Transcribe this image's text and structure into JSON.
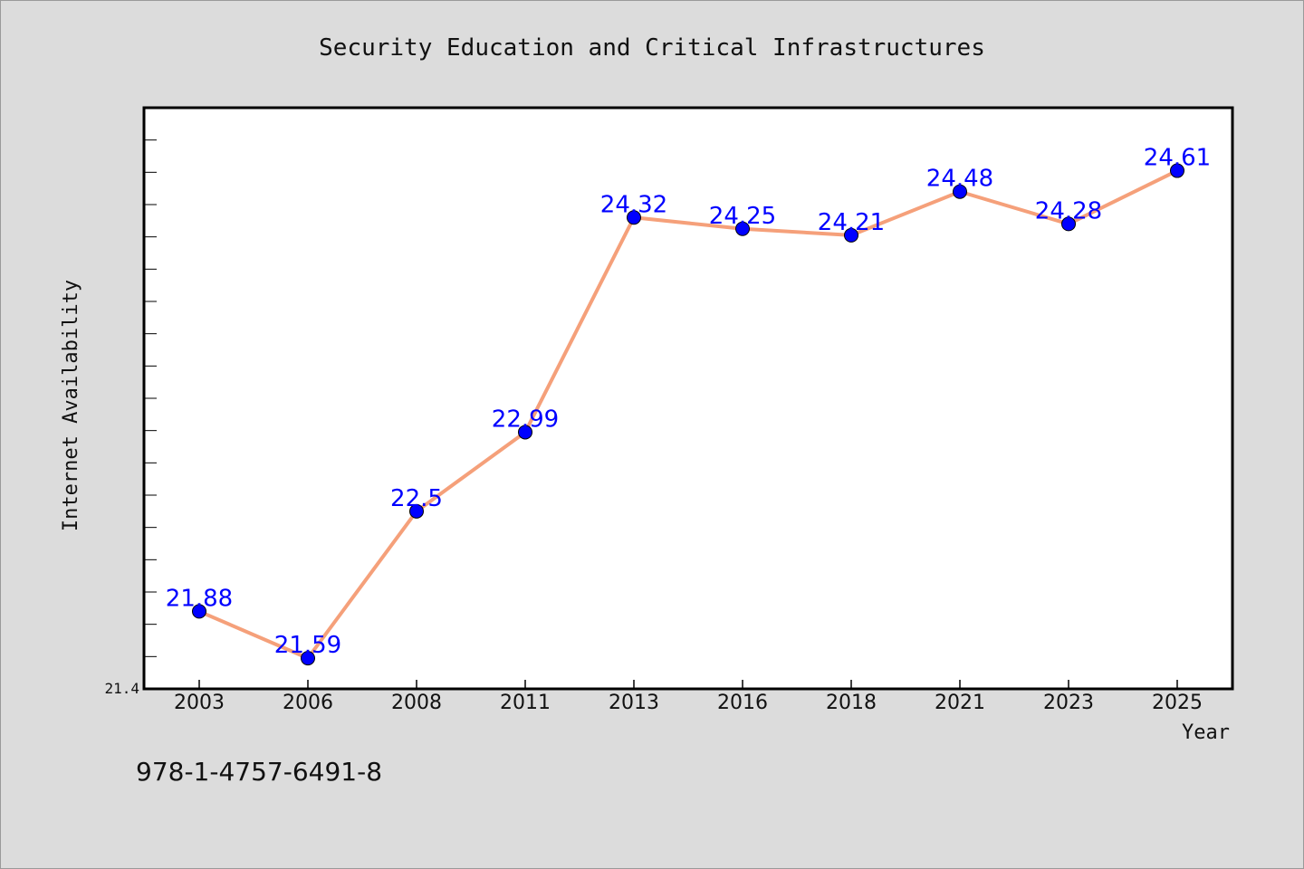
{
  "chart_data": {
    "type": "line",
    "title": "Security Education and Critical Infrastructures",
    "xlabel": "Year",
    "ylabel": "Internet Availability",
    "categories": [
      "2003",
      "2006",
      "2008",
      "2011",
      "2013",
      "2016",
      "2018",
      "2021",
      "2023",
      "2025"
    ],
    "series": [
      {
        "values": [
          21.88,
          21.59,
          22.5,
          22.99,
          24.32,
          24.25,
          24.21,
          24.48,
          24.28,
          24.61
        ],
        "labels": [
          "21.88",
          "21.59",
          "22.5",
          "22.99",
          "24.32",
          "24.25",
          "24.21",
          "24.48",
          "24.28",
          "24.61"
        ]
      }
    ],
    "y_tick_label": "21.4",
    "ylim": [
      21.4,
      25.0
    ],
    "grid": false,
    "legend": "none",
    "colors": {
      "line": "#f5a07a",
      "marker": "#0000ff",
      "data_label": "#0000ff",
      "plot_background": "#ffffff",
      "figure_background": "#dcdcdc"
    }
  },
  "footer": {
    "isbn": "978-1-4757-6491-8"
  }
}
